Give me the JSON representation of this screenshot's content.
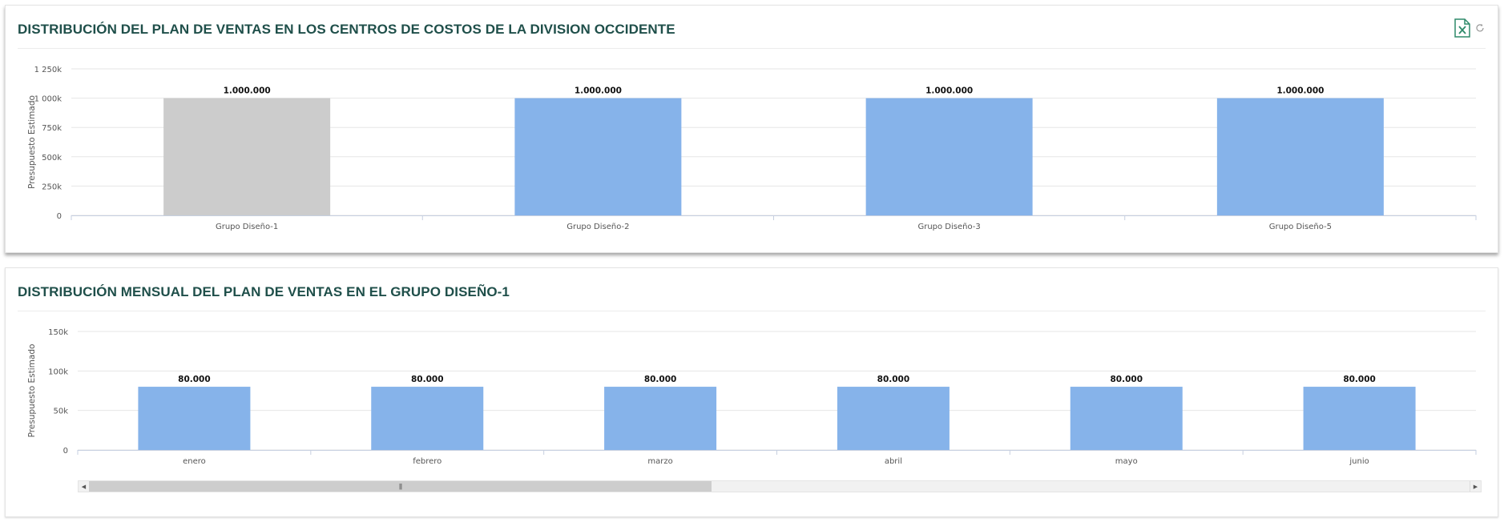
{
  "panel1": {
    "title": "DISTRIBUCIÓN DEL PLAN DE VENTAS EN LOS CENTROS DE COSTOS DE LA DIVISION OCCIDENTE",
    "toolbar": {
      "export_icon": "excel-export-icon",
      "refresh_icon": "refresh-icon"
    }
  },
  "panel2": {
    "title": "DISTRIBUCIÓN MENSUAL DEL PLAN DE VENTAS EN EL GRUPO DISEÑO-1"
  },
  "colors": {
    "title": "#1f4f4a",
    "bar": "#86b3ea",
    "bar_selected": "#cccccc",
    "grid": "#e6e6e6",
    "axis_text": "#555555",
    "excel_icon": "#2f8a6a"
  },
  "chart_data": [
    {
      "type": "bar",
      "title": "",
      "xlabel": "",
      "ylabel": "Presupuesto Estimado",
      "categories": [
        "Grupo Diseño-1",
        "Grupo Diseño-2",
        "Grupo Diseño-3",
        "Grupo Diseño-5"
      ],
      "values": [
        1000000,
        1000000,
        1000000,
        1000000
      ],
      "value_labels": [
        "1.000.000",
        "1.000.000",
        "1.000.000",
        "1.000.000"
      ],
      "selected_index": 0,
      "ylim": [
        0,
        1250000
      ],
      "yticks": [
        0,
        250000,
        500000,
        750000,
        1000000,
        1250000
      ],
      "ytick_labels": [
        "0",
        "250k",
        "500k",
        "750k",
        "1 000k",
        "1 250k"
      ],
      "grid": true,
      "legend": "none"
    },
    {
      "type": "bar",
      "title": "",
      "xlabel": "",
      "ylabel": "Presupuesto Estimado",
      "categories": [
        "enero",
        "febrero",
        "marzo",
        "abril",
        "mayo",
        "junio"
      ],
      "values": [
        80000,
        80000,
        80000,
        80000,
        80000,
        80000
      ],
      "value_labels": [
        "80.000",
        "80.000",
        "80.000",
        "80.000",
        "80.000",
        "80.000"
      ],
      "ylim": [
        0,
        150000
      ],
      "yticks": [
        0,
        50000,
        100000,
        150000
      ],
      "ytick_labels": [
        "0",
        "50k",
        "100k",
        "150k"
      ],
      "grid": true,
      "legend": "none",
      "scrollbar": {
        "visible_fraction": 0.45
      }
    }
  ]
}
